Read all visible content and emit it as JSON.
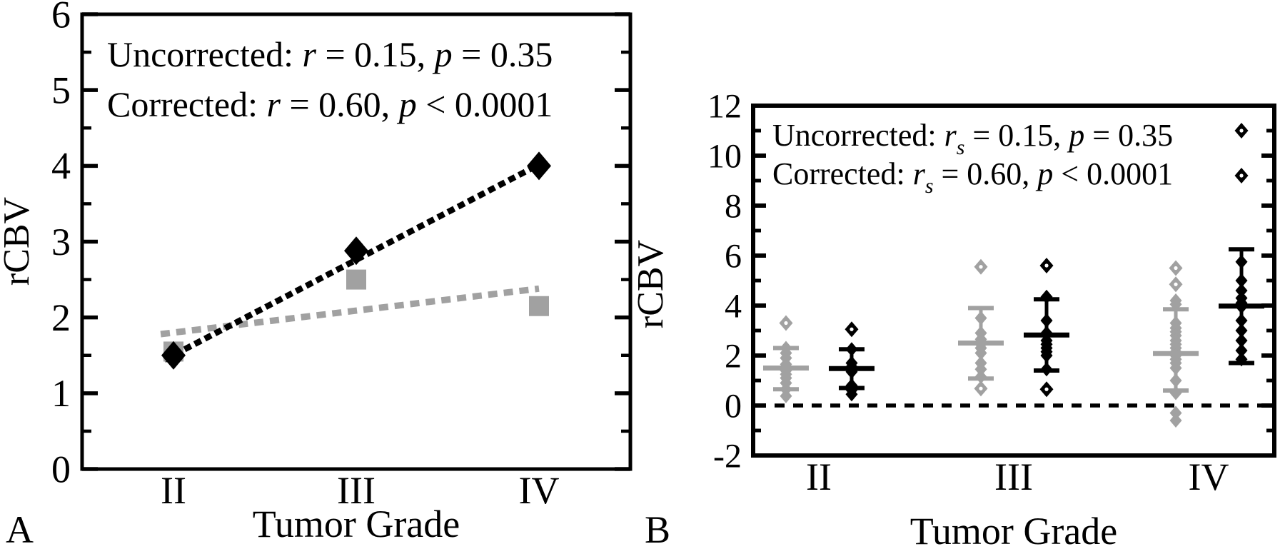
{
  "figure": {
    "panel_a_label": "A",
    "panel_b_label": "B"
  },
  "colors": {
    "corrected": "#000000",
    "uncorrected_marker": "#a1a1a1",
    "uncorrected_legend_text": "#b0b0b0",
    "background": "#ffffff"
  },
  "chart_data": [
    {
      "panel": "A",
      "type": "scatter",
      "xlabel": "Tumor Grade",
      "ylabel": "rCBV",
      "categories": [
        "II",
        "III",
        "IV"
      ],
      "ylim": [
        0,
        6
      ],
      "yticks": [
        0,
        1,
        2,
        3,
        4,
        5,
        6
      ],
      "y_minor_step": 0.5,
      "grid": false,
      "legend_position": "top-left",
      "legend": [
        {
          "series": "Uncorrected",
          "color": "#b0b0b0",
          "text": "Uncorrected: r = 0.15,  p = 0.35",
          "parts": [
            {
              "t": "Uncorrected: "
            },
            {
              "t": "r",
              "italic": true
            },
            {
              "t": " = 0.15,  "
            },
            {
              "t": "p",
              "italic": true
            },
            {
              "t": " = 0.35"
            }
          ]
        },
        {
          "series": "Corrected",
          "color": "#000000",
          "text": "Corrected: r = 0.60,  p < 0.0001",
          "parts": [
            {
              "t": "Corrected: "
            },
            {
              "t": "r",
              "italic": true
            },
            {
              "t": " = 0.60,  "
            },
            {
              "t": "p",
              "italic": true
            },
            {
              "t": " < 0.0001"
            }
          ]
        }
      ],
      "series": [
        {
          "name": "Uncorrected",
          "marker": "square",
          "color": "#a1a1a1",
          "values": [
            1.55,
            2.5,
            2.15
          ],
          "r": "0.15",
          "p": "0.35",
          "trendline": {
            "style": "dashed",
            "points": [
              [
                -0.07,
                1.78
              ],
              [
                2.0,
                2.38
              ]
            ]
          }
        },
        {
          "name": "Corrected",
          "marker": "diamond",
          "color": "#000000",
          "values": [
            1.5,
            2.88,
            4.0
          ],
          "r": "0.60",
          "p": "<0.0001",
          "trendline": {
            "style": "dotted",
            "points": [
              [
                -0.05,
                1.44
              ],
              [
                2.01,
                4.03
              ]
            ]
          }
        }
      ]
    },
    {
      "panel": "B",
      "type": "scatter",
      "xlabel": "Tumor Grade",
      "ylabel": "rCBV",
      "categories": [
        "II",
        "III",
        "IV"
      ],
      "ylim": [
        -2,
        12
      ],
      "yticks": [
        -2,
        0,
        2,
        4,
        6,
        8,
        10,
        12
      ],
      "y_minor_step": 1,
      "grid": false,
      "zero_line_y": 0,
      "legend_position": "top-left",
      "legend": [
        {
          "series": "Uncorrected",
          "color": "#adadad",
          "text": "Uncorrected: rs = 0.15, p = 0.35",
          "parts": [
            {
              "t": "Uncorrected: "
            },
            {
              "t": "r",
              "italic": true
            },
            {
              "t": "s",
              "italic": true,
              "sub": true
            },
            {
              "t": " = 0.15, "
            },
            {
              "t": "p",
              "italic": true
            },
            {
              "t": " = 0.35"
            }
          ]
        },
        {
          "series": "Corrected",
          "color": "#000000",
          "text": "Corrected: rs = 0.60, p < 0.0001",
          "parts": [
            {
              "t": "Corrected: "
            },
            {
              "t": "r",
              "italic": true
            },
            {
              "t": "s",
              "italic": true,
              "sub": true
            },
            {
              "t": " = 0.60, "
            },
            {
              "t": "p",
              "italic": true
            },
            {
              "t": " < 0.0001"
            }
          ]
        }
      ],
      "groups": [
        {
          "grade": "II",
          "series": "Uncorrected",
          "color": "#a1a1a1",
          "mean": 1.5,
          "whisker_low": 0.65,
          "whisker_high": 2.3,
          "points": [
            2.3,
            2.1,
            1.9,
            1.65,
            1.5,
            1.4,
            1.25,
            1.1,
            0.9,
            0.65,
            0.38
          ],
          "open_points": [
            3.3
          ]
        },
        {
          "grade": "II",
          "series": "Corrected",
          "color": "#000000",
          "mean": 1.48,
          "whisker_low": 0.7,
          "whisker_high": 2.25,
          "points": [
            2.25,
            1.7,
            1.55,
            1.45,
            1.35,
            0.8,
            0.62,
            0.45
          ],
          "open_points": [
            3.05
          ]
        },
        {
          "grade": "III",
          "series": "Uncorrected",
          "color": "#a1a1a1",
          "mean": 2.5,
          "whisker_low": 1.08,
          "whisker_high": 3.9,
          "points": [
            3.5,
            2.9,
            2.65,
            2.45,
            2.3,
            2.1,
            1.7,
            1.45,
            1.15
          ],
          "open_points": [
            5.55,
            0.68
          ]
        },
        {
          "grade": "III",
          "series": "Corrected",
          "color": "#000000",
          "mean": 2.82,
          "whisker_low": 1.4,
          "whisker_high": 4.25,
          "points": [
            4.35,
            3.4,
            2.9,
            2.6,
            2.45,
            2.3,
            2.15,
            2.0,
            1.45
          ],
          "open_points": [
            5.6,
            0.65
          ]
        },
        {
          "grade": "IV",
          "series": "Uncorrected",
          "color": "#a1a1a1",
          "mean": 2.08,
          "whisker_low": 0.6,
          "whisker_high": 3.85,
          "points": [
            4.2,
            4.05,
            3.3,
            3.1,
            2.95,
            2.8,
            2.6,
            2.45,
            2.3,
            2.15,
            2.0,
            1.85,
            1.7,
            1.5,
            1.0,
            0.5,
            -0.3,
            -0.6
          ],
          "open_points": [
            5.5,
            4.85
          ]
        },
        {
          "grade": "IV",
          "series": "Corrected",
          "color": "#000000",
          "mean": 3.98,
          "whisker_low": 1.7,
          "whisker_high": 6.25,
          "points": [
            5.75,
            5.0,
            4.6,
            4.3,
            4.1,
            3.95,
            3.4,
            3.0,
            2.6,
            2.2,
            1.85
          ],
          "open_points": [
            11.0,
            9.2
          ]
        }
      ]
    }
  ]
}
